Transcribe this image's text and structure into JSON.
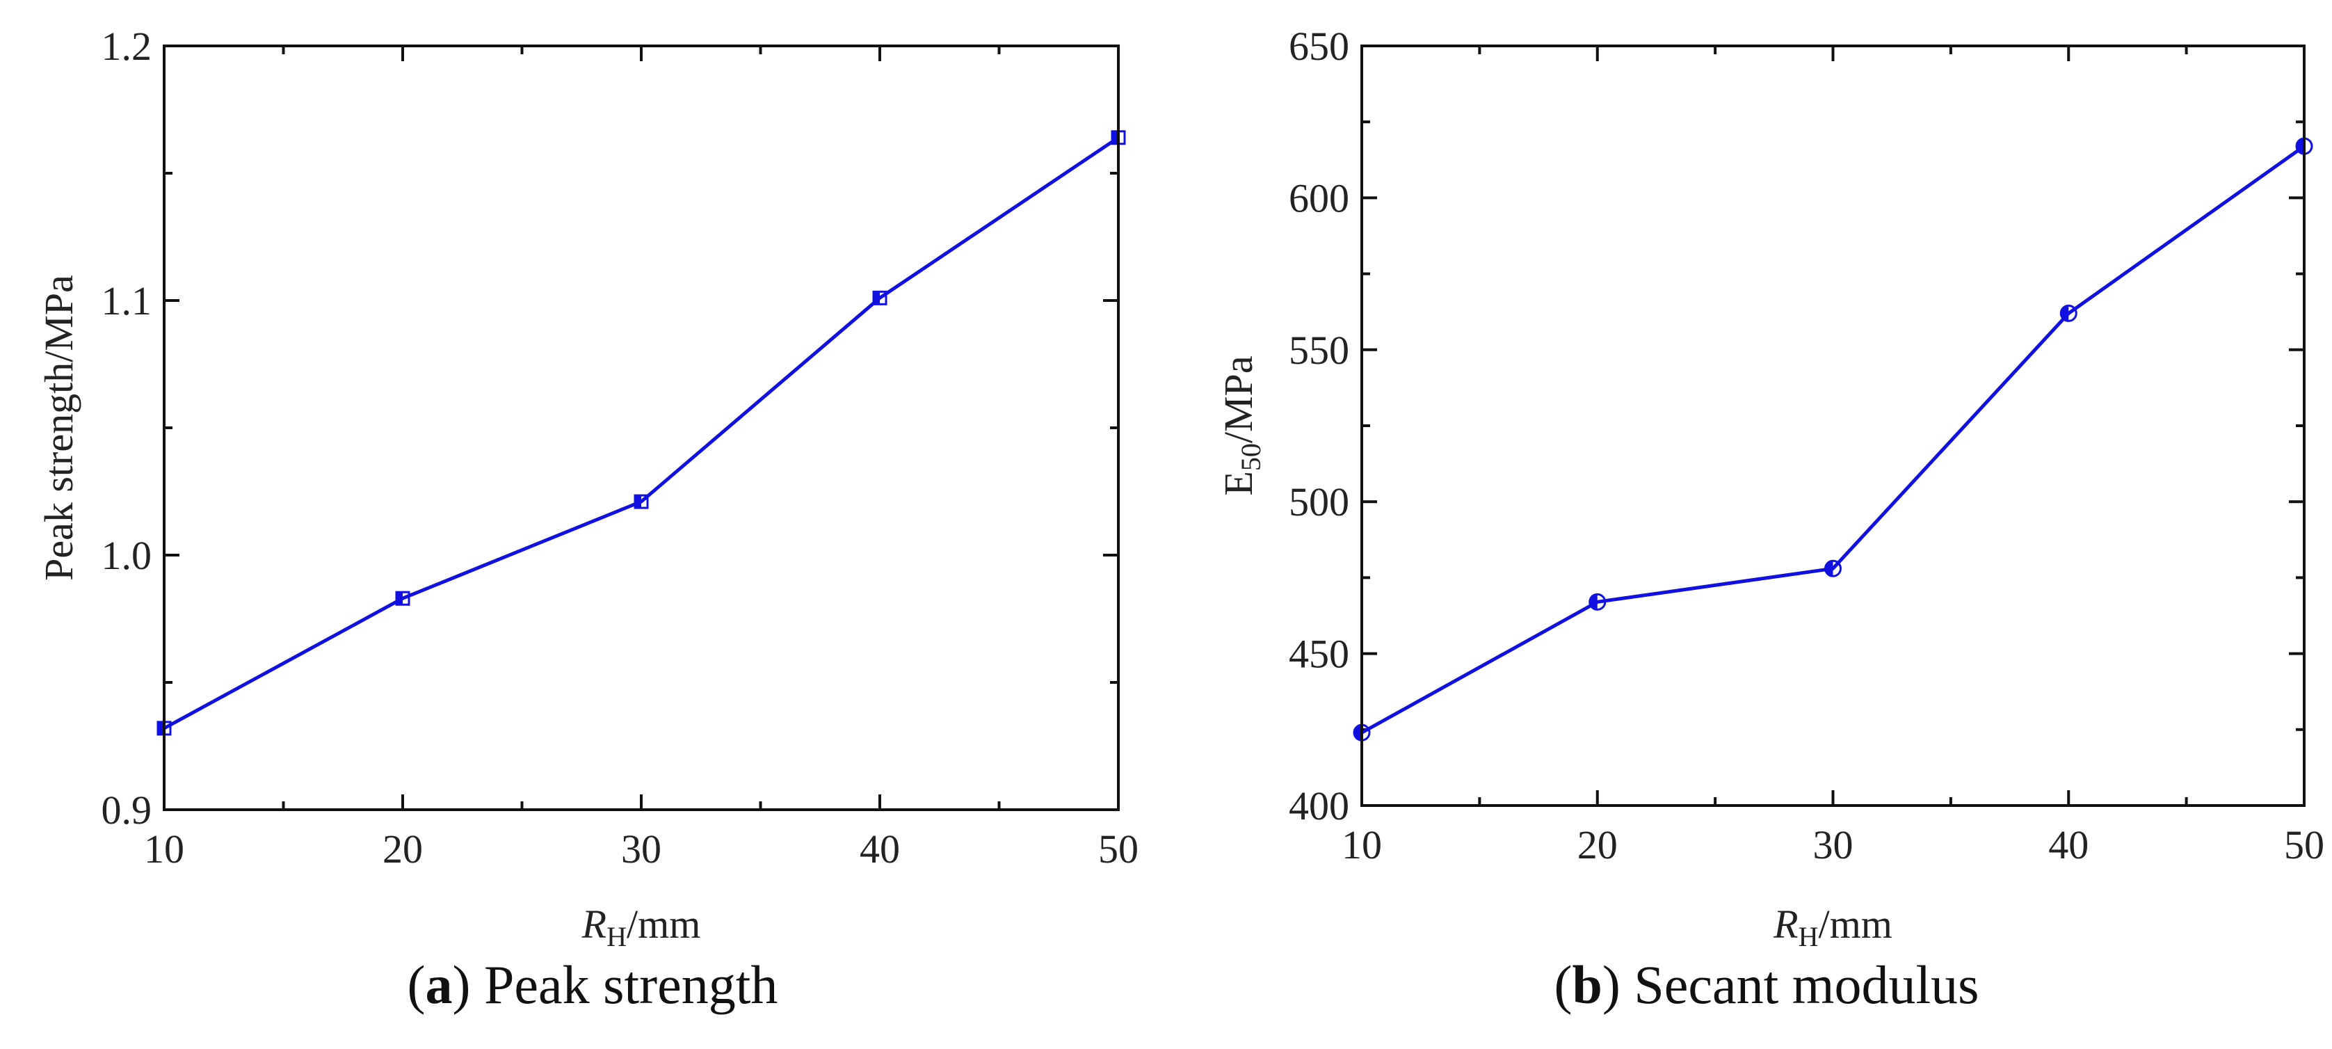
{
  "chart_data": [
    {
      "type": "line",
      "caption_letter": "a",
      "caption_text": "Peak strength",
      "xlabel": {
        "main": "R",
        "sub": "H",
        "rest": "/mm"
      },
      "ylabel": "Peak strength/MPa",
      "xlim": [
        10,
        50
      ],
      "ylim": [
        0.9,
        1.2
      ],
      "xticks": [
        "10",
        "20",
        "30",
        "40",
        "50"
      ],
      "yticks": [
        "0.9",
        "1.0",
        "1.1",
        "1.2"
      ],
      "ytick_values": [
        0.9,
        1.0,
        1.1,
        1.2
      ],
      "grid": false,
      "marker": "half-filled-square",
      "color": "#1010e0",
      "x": [
        10,
        20,
        30,
        40,
        50
      ],
      "y": [
        0.932,
        0.983,
        1.021,
        1.101,
        1.164
      ]
    },
    {
      "type": "line",
      "caption_letter": "b",
      "caption_text": "Secant modulus",
      "xlabel": {
        "main": "R",
        "sub": "H",
        "rest": "/mm"
      },
      "ylabel": {
        "main": "E",
        "sub": "50",
        "rest": "/MPa"
      },
      "xlim": [
        10,
        50
      ],
      "ylim": [
        400,
        650
      ],
      "xticks": [
        "10",
        "20",
        "30",
        "40",
        "50"
      ],
      "yticks": [
        "400",
        "450",
        "500",
        "550",
        "600",
        "650"
      ],
      "ytick_values": [
        400,
        450,
        500,
        550,
        600,
        650
      ],
      "grid": false,
      "marker": "half-filled-circle",
      "color": "#1010e0",
      "x": [
        10,
        20,
        30,
        40,
        50
      ],
      "y": [
        424,
        467,
        478,
        562,
        617
      ]
    }
  ]
}
